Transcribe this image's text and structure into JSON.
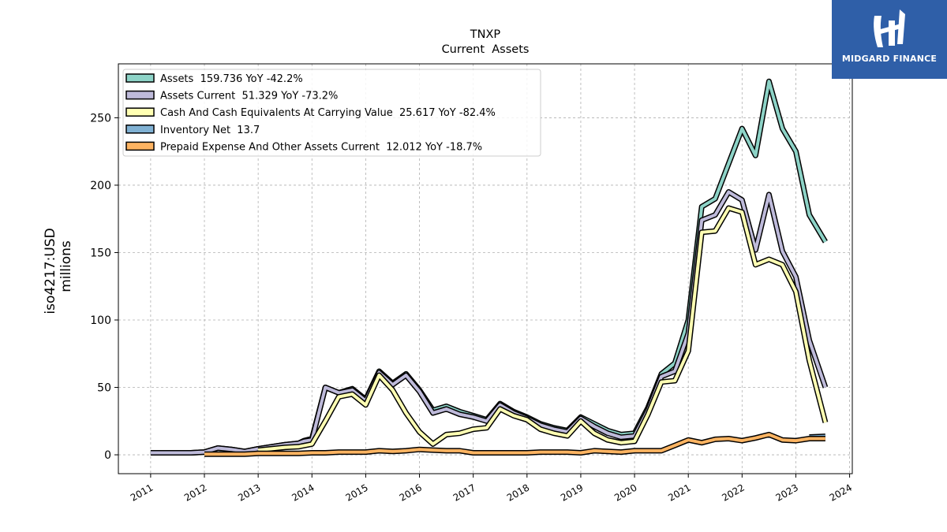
{
  "brand": {
    "name": "MIDGARD FINANCE",
    "color": "#2f5fa8"
  },
  "chart_data": {
    "type": "line",
    "title": "TNXP",
    "subtitle": "Current  Assets",
    "ylabel": "iso4217:USD",
    "ylabel2": "millions",
    "xlabel": "",
    "ylim": [
      -14,
      290
    ],
    "xlim": [
      2010.4,
      2024.05
    ],
    "grid": true,
    "legend_placement": "top-left",
    "x_ticks": [
      2011,
      2012,
      2013,
      2014,
      2015,
      2016,
      2017,
      2018,
      2019,
      2020,
      2021,
      2022,
      2023,
      2024
    ],
    "y_ticks": [
      0,
      50,
      100,
      150,
      200,
      250
    ],
    "series": [
      {
        "name": "Assets",
        "legend": "Assets  159.736 YoY -42.2%",
        "color": "#8dd3c7",
        "x": [
          2011.0,
          2011.25,
          2011.5,
          2011.75,
          2012.0,
          2012.25,
          2012.5,
          2012.75,
          2013.0,
          2013.25,
          2013.5,
          2013.75,
          2013.85,
          2014.0,
          2014.25,
          2014.5,
          2014.75,
          2015.0,
          2015.25,
          2015.5,
          2015.75,
          2016.0,
          2016.25,
          2016.5,
          2016.75,
          2017.0,
          2017.25,
          2017.5,
          2017.75,
          2018.0,
          2018.25,
          2018.5,
          2018.75,
          2019.0,
          2019.25,
          2019.5,
          2019.75,
          2020.0,
          2020.25,
          2020.5,
          2020.75,
          2021.0,
          2021.25,
          2021.5,
          2021.75,
          2022.0,
          2022.25,
          2022.5,
          2022.75,
          2023.0,
          2023.25,
          2023.55
        ],
        "values": [
          1.5,
          1.5,
          1.5,
          1.5,
          2.0,
          5.0,
          4.0,
          2.5,
          4.5,
          6.0,
          7.5,
          8.5,
          10.5,
          12.0,
          50.0,
          46.0,
          49.0,
          41.0,
          62.0,
          53.0,
          60.0,
          48.0,
          33.0,
          36.0,
          32.0,
          29.0,
          26.0,
          38.0,
          32.0,
          28.0,
          23.0,
          20.0,
          18.0,
          28.0,
          23.0,
          18.0,
          15.0,
          16.0,
          35.0,
          60.0,
          68.0,
          100.0,
          184.0,
          190.0,
          216.0,
          242.0,
          222.0,
          277.0,
          242.0,
          225.0,
          178.0,
          158.0
        ]
      },
      {
        "name": "Assets Current",
        "legend": "Assets Current  51.329 YoY -73.2%",
        "color": "#bebada",
        "x": [
          2011.0,
          2011.25,
          2011.5,
          2011.75,
          2012.0,
          2012.25,
          2012.5,
          2012.75,
          2013.0,
          2013.25,
          2013.5,
          2013.75,
          2013.85,
          2014.0,
          2014.25,
          2014.5,
          2014.75,
          2015.0,
          2015.25,
          2015.5,
          2015.75,
          2016.0,
          2016.25,
          2016.5,
          2016.75,
          2017.0,
          2017.25,
          2017.5,
          2017.75,
          2018.0,
          2018.25,
          2018.5,
          2018.75,
          2019.0,
          2019.25,
          2019.5,
          2019.75,
          2020.0,
          2020.25,
          2020.5,
          2020.75,
          2021.0,
          2021.25,
          2021.5,
          2021.75,
          2022.0,
          2022.25,
          2022.5,
          2022.75,
          2023.0,
          2023.25,
          2023.55
        ],
        "values": [
          1.5,
          1.5,
          1.5,
          1.5,
          2.0,
          5.0,
          4.0,
          2.5,
          4.5,
          6.0,
          7.5,
          8.5,
          10.0,
          11.0,
          50.0,
          46.0,
          48.0,
          40.0,
          61.0,
          52.0,
          59.0,
          47.0,
          31.0,
          34.0,
          30.0,
          28.0,
          25.0,
          37.0,
          31.0,
          27.0,
          22.0,
          19.0,
          17.0,
          27.0,
          21.0,
          16.0,
          13.0,
          14.0,
          33.0,
          58.0,
          62.0,
          90.0,
          174.0,
          178.0,
          195.0,
          189.0,
          152.0,
          193.0,
          151.0,
          132.0,
          85.0,
          50.0
        ]
      },
      {
        "name": "Cash And Cash Equivalents At Carrying Value",
        "legend": "Cash And Cash Equivalents At Carrying Value  25.617 YoY -82.4%",
        "color": "#ffffb3",
        "x": [
          2013.0,
          2013.25,
          2013.5,
          2013.75,
          2014.0,
          2014.25,
          2014.5,
          2014.75,
          2015.0,
          2015.25,
          2015.5,
          2015.75,
          2016.0,
          2016.25,
          2016.5,
          2016.75,
          2017.0,
          2017.25,
          2017.5,
          2017.75,
          2018.0,
          2018.25,
          2018.5,
          2018.75,
          2019.0,
          2019.25,
          2019.5,
          2019.75,
          2020.0,
          2020.25,
          2020.5,
          2020.75,
          2021.0,
          2021.25,
          2021.5,
          2021.75,
          2022.0,
          2022.25,
          2022.5,
          2022.75,
          2023.0,
          2023.25,
          2023.55
        ],
        "values": [
          3.5,
          4.5,
          5.5,
          6.0,
          8.0,
          25.0,
          43.0,
          45.0,
          37.0,
          59.0,
          48.0,
          31.0,
          17.0,
          8.0,
          15.0,
          16.0,
          19.0,
          20.0,
          34.0,
          29.0,
          26.0,
          19.0,
          16.0,
          14.0,
          25.0,
          16.0,
          11.0,
          9.0,
          10.0,
          30.0,
          54.0,
          55.0,
          77.0,
          165.0,
          166.0,
          183.0,
          180.0,
          141.0,
          145.0,
          141.0,
          121.0,
          70.0,
          24.0
        ]
      },
      {
        "name": "Inventory Net",
        "legend": "Inventory Net  13.7",
        "color": "#80b1d3",
        "x": [
          2023.25,
          2023.55
        ],
        "values": [
          13.2,
          13.7
        ]
      },
      {
        "name": "Prepaid Expense And Other Assets Current",
        "legend": "Prepaid Expense And Other Assets Current  12.012 YoY -18.7%",
        "color": "#fdb462",
        "x": [
          2012.0,
          2012.25,
          2012.5,
          2012.75,
          2013.0,
          2013.25,
          2013.5,
          2013.75,
          2014.0,
          2014.25,
          2014.5,
          2014.75,
          2015.0,
          2015.25,
          2015.5,
          2015.75,
          2016.0,
          2016.25,
          2016.5,
          2016.75,
          2017.0,
          2017.25,
          2017.5,
          2017.75,
          2018.0,
          2018.25,
          2018.5,
          2018.75,
          2019.0,
          2019.25,
          2019.5,
          2019.75,
          2020.0,
          2020.25,
          2020.5,
          2020.75,
          2021.0,
          2021.25,
          2021.5,
          2021.75,
          2022.0,
          2022.25,
          2022.5,
          2022.75,
          2023.0,
          2023.25,
          2023.55
        ],
        "values": [
          0.5,
          0.5,
          0.5,
          0.5,
          1.0,
          1.0,
          1.0,
          1.0,
          1.5,
          1.5,
          2.0,
          2.0,
          2.0,
          3.0,
          2.5,
          3.0,
          4.0,
          3.5,
          3.0,
          3.0,
          1.5,
          1.5,
          1.5,
          1.5,
          1.5,
          2.0,
          2.0,
          2.0,
          1.5,
          3.0,
          2.5,
          2.0,
          3.0,
          3.0,
          3.0,
          7.0,
          11.0,
          9.0,
          11.5,
          12.0,
          10.5,
          12.5,
          15.0,
          11.0,
          10.5,
          12.0,
          12.0
        ]
      }
    ]
  }
}
